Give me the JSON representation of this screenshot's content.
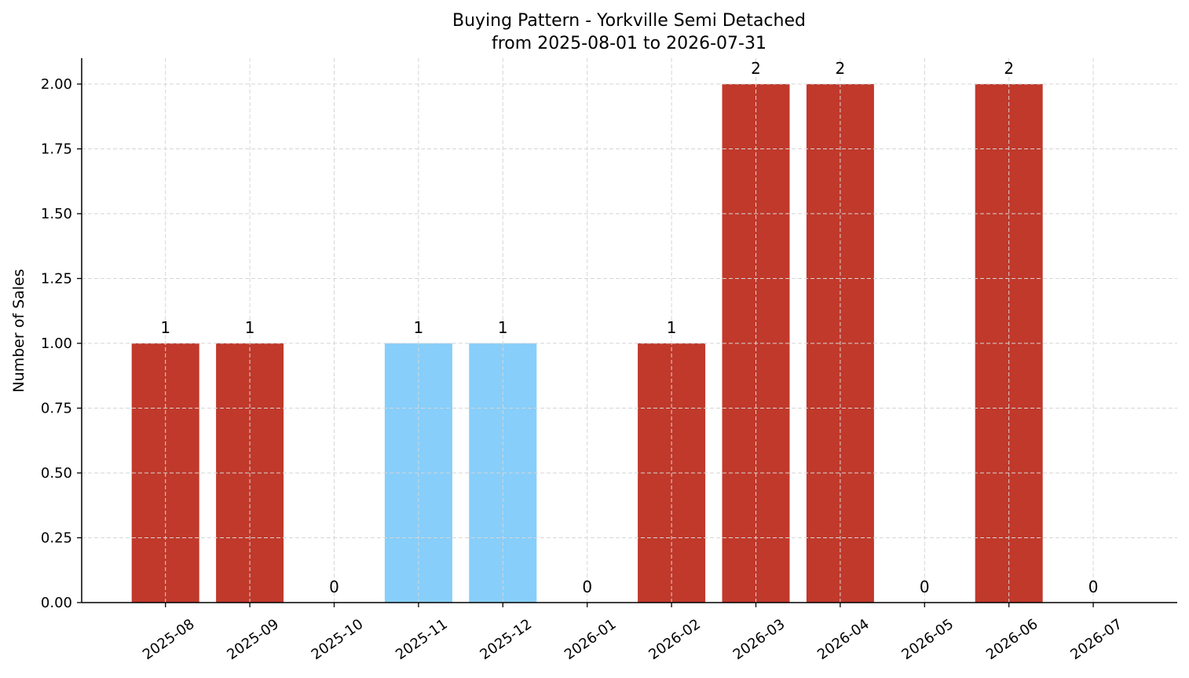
{
  "chart_data": {
    "type": "bar",
    "title": "Buying Pattern - Yorkville Semi Detached",
    "subtitle": "from 2025-08-01 to 2026-07-31",
    "xlabel": "",
    "ylabel": "Number of Sales",
    "categories": [
      "2025-08",
      "2025-09",
      "2025-10",
      "2025-11",
      "2025-12",
      "2026-01",
      "2026-02",
      "2026-03",
      "2026-04",
      "2026-05",
      "2026-06",
      "2026-07"
    ],
    "values": [
      1,
      1,
      0,
      1,
      1,
      0,
      1,
      2,
      2,
      0,
      2,
      0
    ],
    "bar_colors": [
      "#c0392b",
      "#c0392b",
      "#c0392b",
      "#87cefa",
      "#87cefa",
      "#c0392b",
      "#c0392b",
      "#c0392b",
      "#c0392b",
      "#c0392b",
      "#c0392b",
      "#c0392b"
    ],
    "ylim": [
      0,
      2.1
    ],
    "yticks": [
      "0.00",
      "0.25",
      "0.50",
      "0.75",
      "1.00",
      "1.25",
      "1.50",
      "1.75",
      "2.00"
    ],
    "grid": true
  }
}
